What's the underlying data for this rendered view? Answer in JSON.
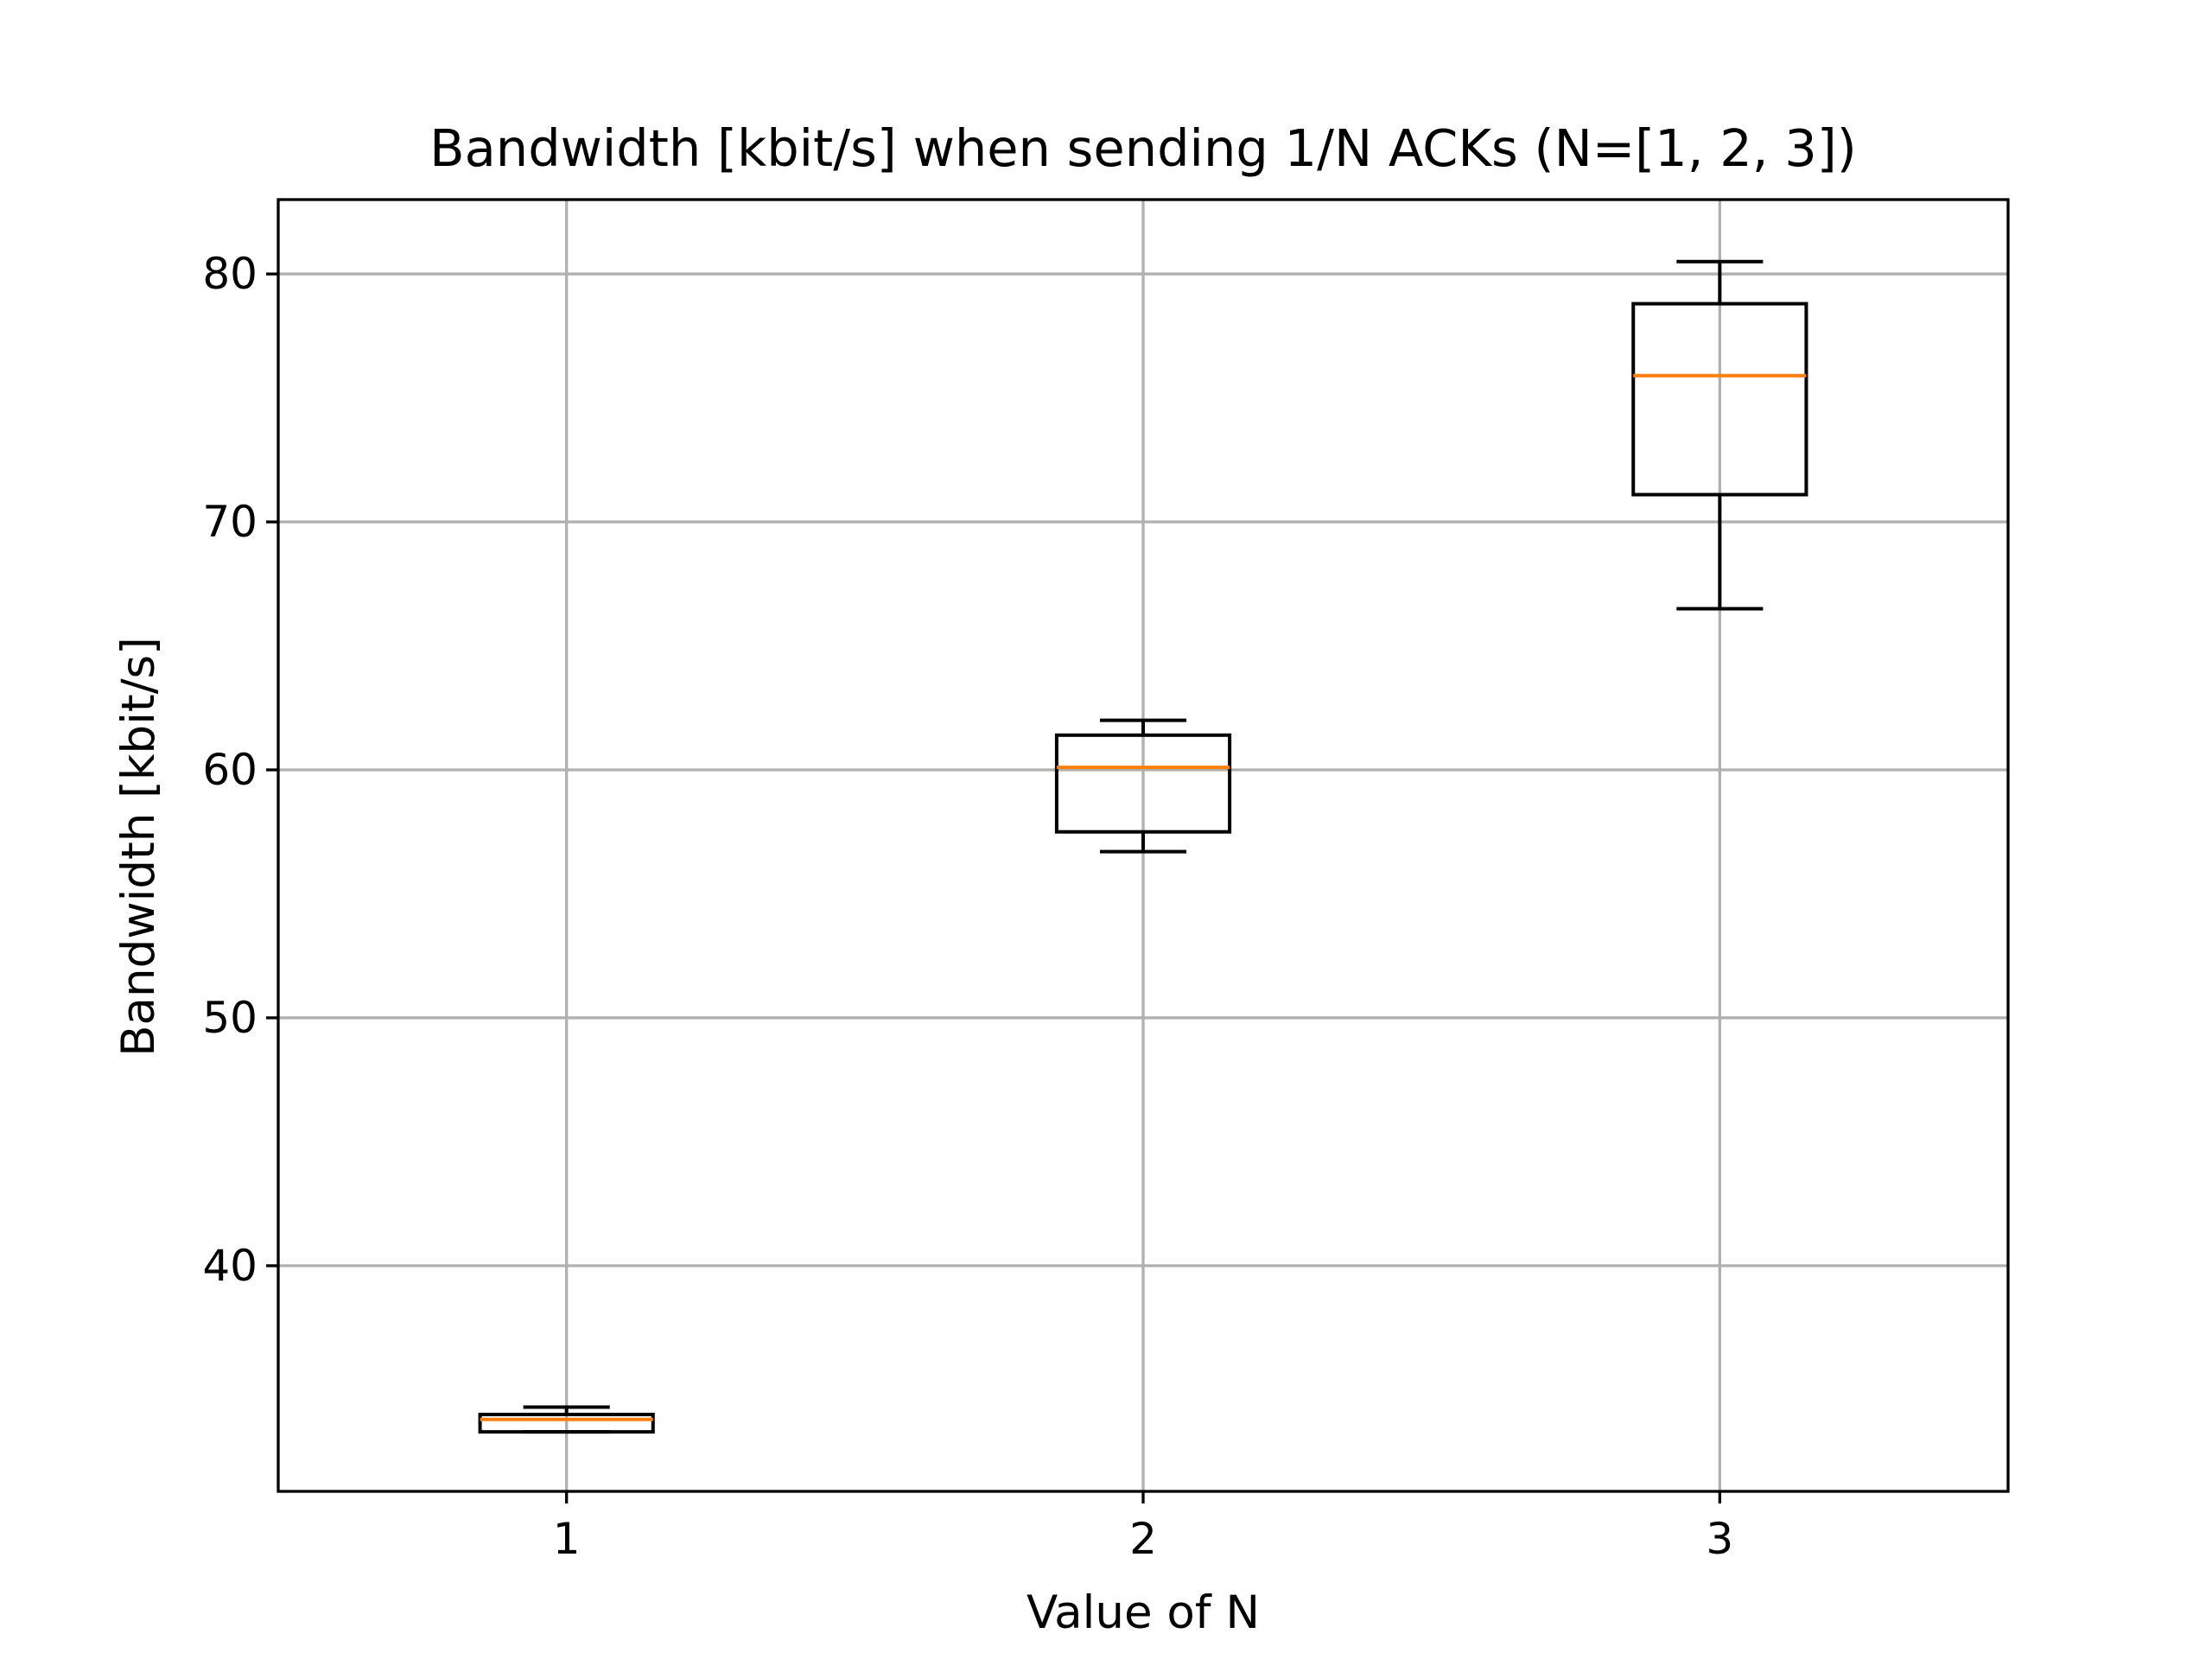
{
  "chart_data": {
    "type": "boxplot",
    "title": "Bandwidth [kbit/s] when sending 1/N ACKs (N=[1, 2, 3])",
    "xlabel": "Value of N",
    "ylabel": "Bandwidth [kbit/s]",
    "categories": [
      "1",
      "2",
      "3"
    ],
    "boxes": [
      {
        "category": "1",
        "whisker_low": 33.3,
        "q1": 33.3,
        "median": 33.8,
        "q3": 34.0,
        "whisker_high": 34.3
      },
      {
        "category": "2",
        "whisker_low": 56.7,
        "q1": 57.5,
        "median": 60.1,
        "q3": 61.4,
        "whisker_high": 62.0
      },
      {
        "category": "3",
        "whisker_low": 66.5,
        "q1": 71.1,
        "median": 75.9,
        "q3": 78.8,
        "whisker_high": 80.5
      }
    ],
    "yticks": [
      40,
      50,
      60,
      70,
      80
    ],
    "ylim": [
      30.9,
      83.0
    ],
    "xlim": [
      0.5,
      3.5
    ],
    "grid": true,
    "colors": {
      "box": "#000000",
      "median": "#ff7f0e",
      "grid": "#b0b0b0"
    }
  }
}
